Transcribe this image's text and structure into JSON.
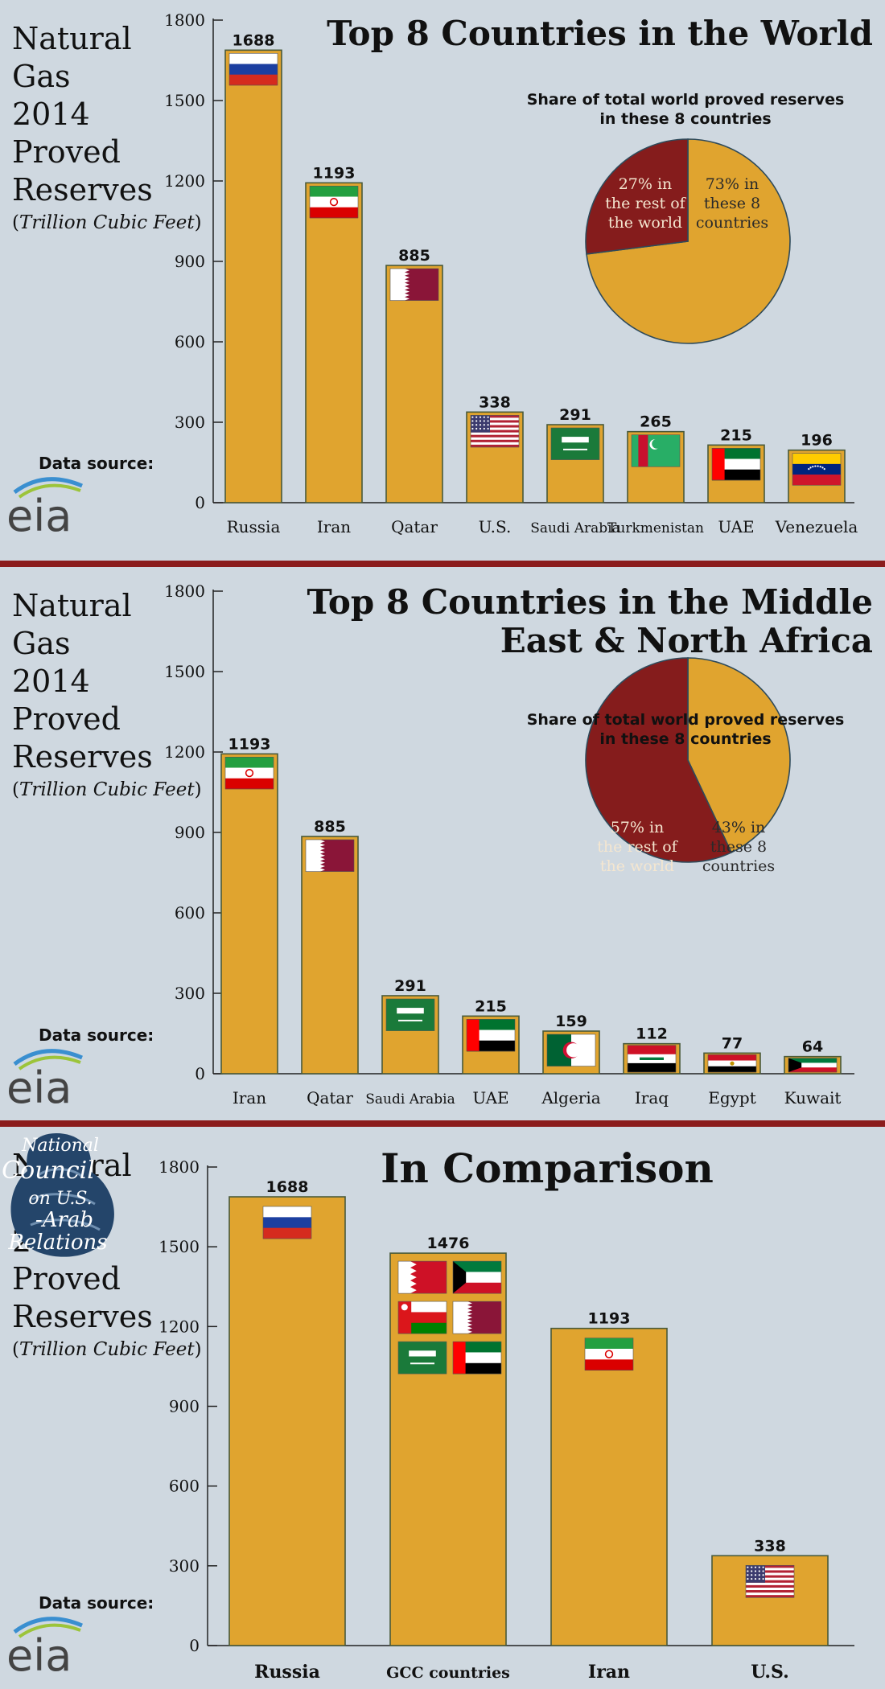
{
  "side_title": {
    "lines": [
      "Natural",
      "Gas",
      "2014",
      "Proved",
      "Reserves"
    ],
    "unit": "Trillion Cubic Feet"
  },
  "data_source_label": "Data source:",
  "eia_logo_text": "eia",
  "ncusar_logo_text": "National Council on U.S.-Arab Relations",
  "colors": {
    "bar": "#e0a42f",
    "bar_stroke": "#4a5a3a",
    "pie_rest": "#851c1c",
    "pie_share": "#e0a42f",
    "divider": "#8b1c1c",
    "background": "#cfd8e0"
  },
  "chart_data": [
    {
      "type": "bar",
      "title": "Top 8 Countries in the World",
      "categories": [
        "Russia",
        "Iran",
        "Qatar",
        "U.S.",
        "Saudi Arabia",
        "Turkmenistan",
        "UAE",
        "Venezuela"
      ],
      "values": [
        1688,
        1193,
        885,
        338,
        291,
        265,
        215,
        196
      ],
      "flags": [
        "russia",
        "iran",
        "qatar",
        "usa",
        "saudi",
        "turkmenistan",
        "uae",
        "venezuela"
      ],
      "yticks": [
        0,
        300,
        600,
        900,
        1200,
        1500,
        1800
      ],
      "ylim": [
        0,
        1800
      ],
      "xlabel": "",
      "ylabel": "",
      "pie": {
        "caption": "Share of total world proved reserves in these 8 countries",
        "slices": [
          {
            "label": "73% in these 8 countries",
            "value": 73
          },
          {
            "label": "27% in the rest of the world",
            "value": 27
          }
        ]
      }
    },
    {
      "type": "bar",
      "title": "Top 8 Countries in the Middle East & North Africa",
      "categories": [
        "Iran",
        "Qatar",
        "Saudi Arabia",
        "UAE",
        "Algeria",
        "Iraq",
        "Egypt",
        "Kuwait"
      ],
      "values": [
        1193,
        885,
        291,
        215,
        159,
        112,
        77,
        64
      ],
      "flags": [
        "iran",
        "qatar",
        "saudi",
        "uae",
        "algeria",
        "iraq",
        "egypt",
        "kuwait"
      ],
      "yticks": [
        0,
        300,
        600,
        900,
        1200,
        1500,
        1800
      ],
      "ylim": [
        0,
        1800
      ],
      "xlabel": "",
      "ylabel": "",
      "pie": {
        "caption": "Share of total world proved reserves in these 8 countries",
        "slices": [
          {
            "label": "43% in these 8 countries",
            "value": 43
          },
          {
            "label": "57% in the rest of the world",
            "value": 57
          }
        ]
      }
    },
    {
      "type": "bar",
      "title": "In Comparison",
      "categories": [
        "Russia",
        "GCC countries",
        "Iran",
        "U.S."
      ],
      "values": [
        1688,
        1476,
        1193,
        338
      ],
      "flags": [
        [
          "russia"
        ],
        [
          "bahrain",
          "kuwait",
          "oman",
          "qatar",
          "saudi",
          "uae"
        ],
        [
          "iran"
        ],
        [
          "usa"
        ]
      ],
      "yticks": [
        0,
        300,
        600,
        900,
        1200,
        1500,
        1800
      ],
      "ylim": [
        0,
        1800
      ],
      "xlabel": "",
      "ylabel": ""
    }
  ]
}
